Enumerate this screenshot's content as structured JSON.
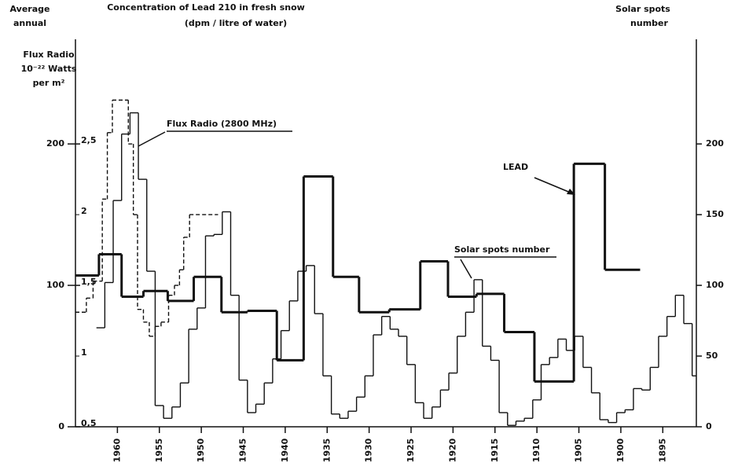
{
  "chart_data": {
    "type": "step",
    "title": "Concentration of Lead 210 in fresh snow",
    "subtitle": "(dpm / litre of water)",
    "corner_label": [
      "Average",
      "annual"
    ],
    "y_label": [
      "Flux Radio",
      "10⁻²² Watts",
      "per m²"
    ],
    "y2_label": [
      "Solar spots",
      "number"
    ],
    "xlim": [
      1965,
      1891
    ],
    "xticks": [
      1960,
      1955,
      1950,
      1945,
      1940,
      1935,
      1930,
      1925,
      1920,
      1915,
      1910,
      1905,
      1900,
      1895
    ],
    "ylim": [
      0,
      274
    ],
    "yticks": [
      0,
      100,
      200
    ],
    "y2lim": [
      0,
      274
    ],
    "y2ticks": [
      0,
      50,
      100,
      150,
      200
    ],
    "y3lim": [
      0.5,
      3.24
    ],
    "y3ticks": [
      {
        "value": 0.5,
        "label": "0,5"
      },
      {
        "value": 1,
        "label": "1"
      },
      {
        "value": 1.5,
        "label": "1,5"
      },
      {
        "value": 2,
        "label": "2"
      },
      {
        "value": 2.5,
        "label": "2,5"
      }
    ],
    "series": [
      {
        "name": "Flux Radio (2800 MHz)",
        "color": "#111111",
        "dashed": true,
        "axis": "y",
        "bins": [
          1965,
          1963.7,
          1962.9,
          1961.8,
          1961.2,
          1960.6,
          1958.7,
          1958.1,
          1957.6,
          1956.9,
          1956.2,
          1955.5,
          1954.8,
          1953.9,
          1953.2,
          1952.6,
          1952.1,
          1951.4,
          1948
        ],
        "values": [
          81,
          91,
          103,
          161,
          208,
          231,
          200,
          150,
          83,
          74,
          64,
          71,
          74,
          93,
          100,
          111,
          134,
          150
        ]
      },
      {
        "name": "LEAD",
        "color": "#111111",
        "thick": true,
        "axis": "y3",
        "bins": [
          1965,
          1962.2,
          1959.5,
          1956.9,
          1954,
          1950.9,
          1947.6,
          1944.5,
          1941,
          1937.8,
          1934.3,
          1931.2,
          1927.6,
          1923.9,
          1920.6,
          1917.2,
          1913.9,
          1910.3,
          1905.6,
          1901.9,
          1897.7
        ],
        "values": [
          1.57,
          1.72,
          1.42,
          1.46,
          1.39,
          1.56,
          1.31,
          1.32,
          0.97,
          2.27,
          1.56,
          1.31,
          1.33,
          1.67,
          1.42,
          1.44,
          1.17,
          0.82,
          2.36,
          1.61
        ]
      },
      {
        "name": "Solar spots number",
        "color": "#111111",
        "axis": "y2",
        "bins": [
          1962.5,
          1961.5,
          1960.5,
          1959.5,
          1958.5,
          1957.5,
          1956.5,
          1955.5,
          1954.5,
          1953.5,
          1952.5,
          1951.5,
          1950.5,
          1949.5,
          1948.5,
          1947.5,
          1946.5,
          1945.5,
          1944.5,
          1943.5,
          1942.5,
          1941.5,
          1940.5,
          1939.5,
          1938.5,
          1937.5,
          1936.5,
          1935.5,
          1934.5,
          1933.5,
          1932.5,
          1931.5,
          1930.5,
          1929.5,
          1928.5,
          1927.5,
          1926.5,
          1925.5,
          1924.5,
          1923.5,
          1922.5,
          1921.5,
          1920.5,
          1919.5,
          1918.5,
          1917.5,
          1916.5,
          1915.5,
          1914.5,
          1913.5,
          1912.5,
          1911.5,
          1910.5,
          1909.5,
          1908.5,
          1907.5,
          1906.5,
          1905.5,
          1904.5,
          1903.5,
          1902.5,
          1901.5,
          1900.5,
          1899.5,
          1898.5,
          1897.5,
          1896.5,
          1895.5,
          1894.5,
          1893.5,
          1892.5,
          1891.5,
          1891
        ],
        "values": [
          70,
          102,
          160,
          207,
          222,
          175,
          110,
          15,
          6,
          14,
          31,
          69,
          84,
          135,
          136,
          152,
          93,
          33,
          10,
          16,
          31,
          48,
          68,
          89,
          110,
          114,
          80,
          36,
          9,
          6,
          11,
          21,
          36,
          65,
          78,
          69,
          64,
          44,
          17,
          6,
          14,
          26,
          38,
          64,
          81,
          104,
          57,
          47,
          10,
          1,
          4,
          6,
          19,
          44,
          49,
          62,
          54,
          64,
          42,
          24,
          5,
          3,
          10,
          12,
          27,
          26,
          42,
          64,
          78,
          93,
          73,
          36
        ]
      }
    ]
  }
}
